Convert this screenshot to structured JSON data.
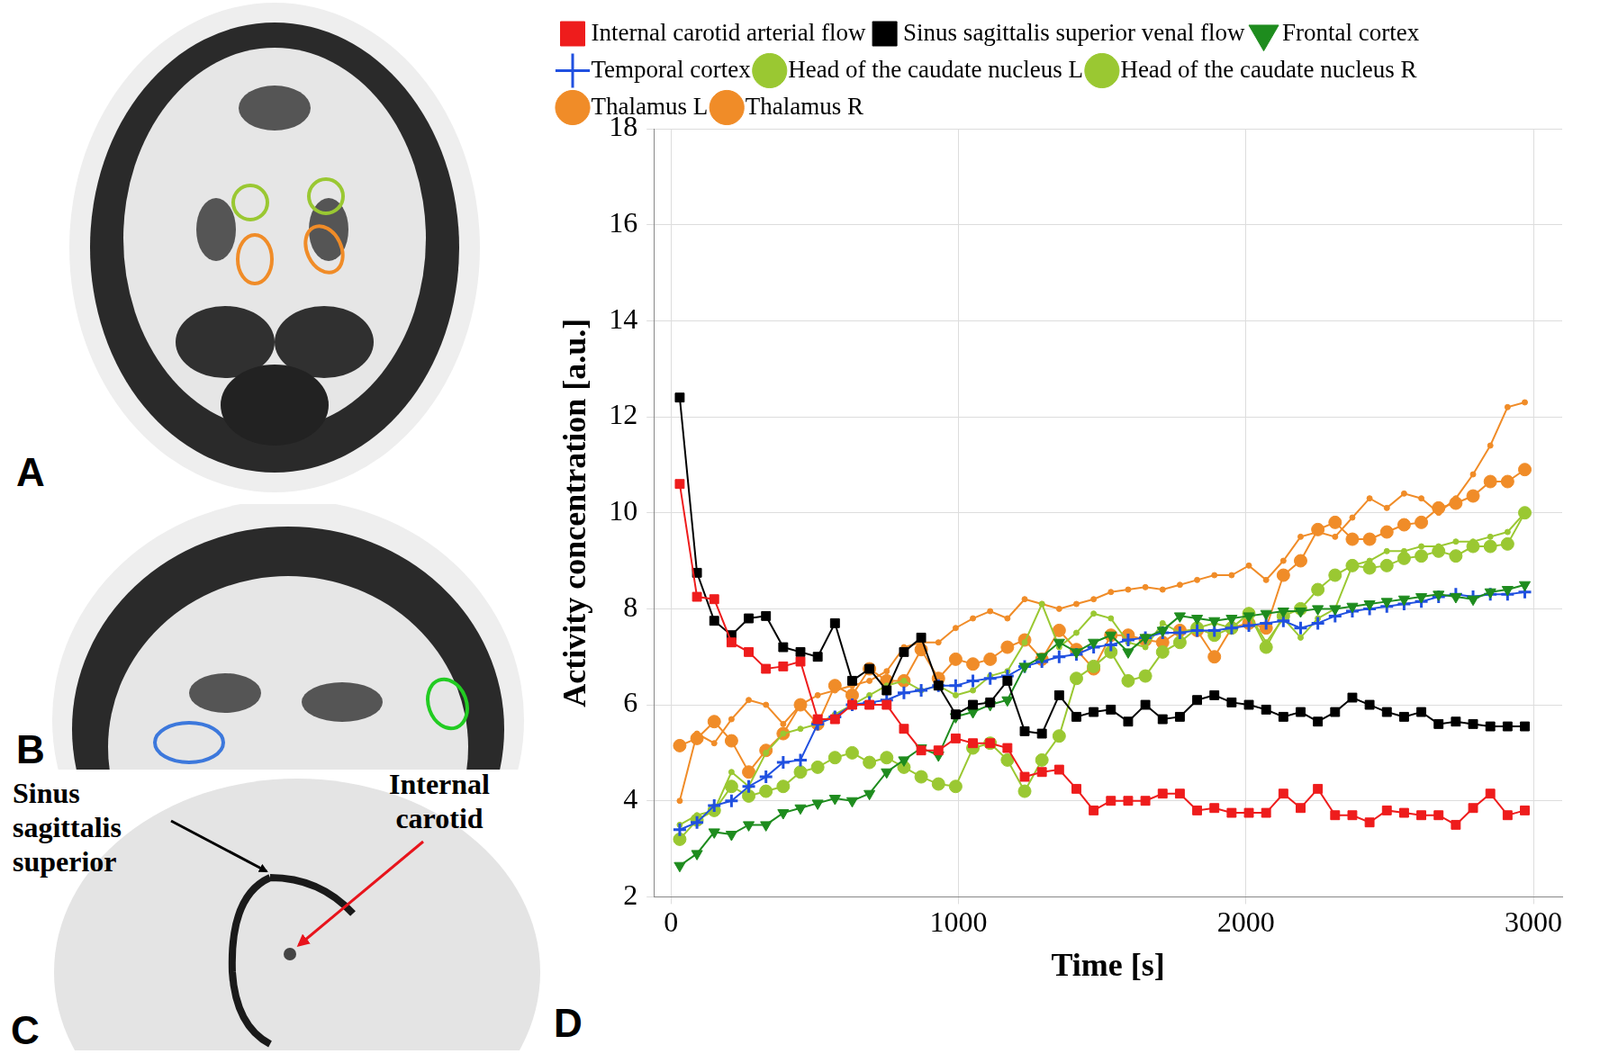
{
  "chart_data": {
    "type": "line",
    "xlabel": "Time [s]",
    "ylabel": "Activity concentration [a.u.]",
    "x": [
      30,
      90,
      150,
      210,
      270,
      330,
      390,
      450,
      510,
      570,
      630,
      690,
      750,
      810,
      870,
      930,
      990,
      1050,
      1110,
      1170,
      1230,
      1290,
      1350,
      1410,
      1470,
      1530,
      1590,
      1650,
      1710,
      1770,
      1830,
      1890,
      1950,
      2010,
      2070,
      2130,
      2190,
      2250,
      2310,
      2370,
      2430,
      2490,
      2550,
      2610,
      2670,
      2730,
      2790,
      2850,
      2910,
      2970
    ],
    "series": [
      {
        "name": "Internal carotid arterial flow",
        "color": "#ee1c1c",
        "marker": "square",
        "values": [
          10.6,
          8.25,
          8.2,
          7.3,
          7.1,
          6.75,
          6.8,
          6.9,
          5.7,
          5.7,
          6.0,
          6.0,
          6.0,
          5.5,
          5.05,
          5.05,
          5.3,
          5.2,
          5.2,
          5.1,
          4.5,
          4.6,
          4.65,
          4.25,
          3.8,
          4.0,
          4.0,
          4.0,
          4.15,
          4.15,
          3.8,
          3.85,
          3.75,
          3.75,
          3.75,
          4.15,
          3.85,
          4.25,
          3.7,
          3.7,
          3.55,
          3.8,
          3.75,
          3.7,
          3.7,
          3.5,
          3.85,
          4.15,
          3.7,
          3.8
        ]
      },
      {
        "name": "Sinus sagittalis superior venal flow",
        "color": "#000000",
        "marker": "square",
        "values": [
          12.4,
          8.75,
          7.75,
          7.45,
          7.8,
          7.85,
          7.2,
          7.1,
          7.0,
          7.7,
          6.5,
          6.75,
          6.3,
          7.1,
          7.4,
          6.4,
          5.8,
          6.0,
          6.05,
          6.5,
          5.45,
          5.4,
          6.2,
          5.75,
          5.85,
          5.9,
          5.65,
          6.0,
          5.7,
          5.75,
          6.1,
          6.2,
          6.05,
          6.0,
          5.9,
          5.75,
          5.85,
          5.65,
          5.85,
          6.15,
          6.0,
          5.85,
          5.75,
          5.85,
          5.6,
          5.65,
          5.6,
          5.55,
          5.55,
          5.55
        ]
      },
      {
        "name": "Frontal cortex",
        "color": "#1e8c1e",
        "marker": "triangle_down",
        "values": [
          2.65,
          2.9,
          3.35,
          3.3,
          3.5,
          3.5,
          3.75,
          3.85,
          3.95,
          4.05,
          4.0,
          4.15,
          4.6,
          4.85,
          5.1,
          4.95,
          5.75,
          5.85,
          6.0,
          6.1,
          6.8,
          7.0,
          7.3,
          7.1,
          7.3,
          7.45,
          7.1,
          7.4,
          7.55,
          7.85,
          7.8,
          7.75,
          7.8,
          7.85,
          7.9,
          7.95,
          7.95,
          8.0,
          8.0,
          8.05,
          8.1,
          8.15,
          8.2,
          8.25,
          8.3,
          8.25,
          8.2,
          8.35,
          8.4,
          8.5
        ]
      },
      {
        "name": "Temporal cortex",
        "color": "#2050e0",
        "marker": "plus",
        "values": [
          3.4,
          3.55,
          3.9,
          4.0,
          4.3,
          4.5,
          4.8,
          4.85,
          5.6,
          5.75,
          6.0,
          6.05,
          6.1,
          6.25,
          6.3,
          6.4,
          6.4,
          6.5,
          6.55,
          6.6,
          6.8,
          6.9,
          7.0,
          7.05,
          7.2,
          7.25,
          7.35,
          7.4,
          7.5,
          7.5,
          7.55,
          7.55,
          7.6,
          7.65,
          7.7,
          7.75,
          7.6,
          7.7,
          7.85,
          7.95,
          8.0,
          8.05,
          8.1,
          8.15,
          8.25,
          8.3,
          8.25,
          8.3,
          8.3,
          8.35
        ]
      },
      {
        "name": "Head of the caudate nucleus L",
        "color": "#9ac832",
        "marker": "small_circle",
        "values": [
          3.5,
          3.7,
          3.8,
          4.6,
          4.3,
          5.0,
          5.4,
          5.5,
          5.6,
          5.8,
          6.0,
          6.2,
          6.4,
          6.5,
          6.3,
          6.4,
          6.2,
          6.3,
          6.6,
          6.7,
          7.3,
          8.1,
          7.2,
          7.5,
          7.9,
          7.8,
          7.3,
          7.2,
          7.7,
          7.5,
          7.6,
          7.7,
          7.6,
          7.9,
          7.3,
          7.8,
          7.4,
          7.8,
          8.0,
          8.9,
          9.0,
          9.2,
          9.2,
          9.3,
          9.3,
          9.4,
          9.4,
          9.5,
          9.6,
          10.0
        ]
      },
      {
        "name": "Head of the caudate nucleus R",
        "color": "#9ac832",
        "marker": "circle",
        "values": [
          3.2,
          3.6,
          3.8,
          4.3,
          4.1,
          4.2,
          4.3,
          4.6,
          4.7,
          4.9,
          5.0,
          4.8,
          4.9,
          4.7,
          4.5,
          4.35,
          4.3,
          5.1,
          5.2,
          4.85,
          4.2,
          4.85,
          5.35,
          6.55,
          6.8,
          7.1,
          6.5,
          6.6,
          7.1,
          7.3,
          7.6,
          7.45,
          7.6,
          7.9,
          7.2,
          7.85,
          8.0,
          8.4,
          8.7,
          8.9,
          8.85,
          8.9,
          9.05,
          9.1,
          9.2,
          9.1,
          9.3,
          9.3,
          9.35,
          10.0
        ]
      },
      {
        "name": "Thalamus L",
        "color": "#f08c28",
        "marker": "small_circle",
        "values": [
          4.0,
          5.4,
          5.2,
          5.7,
          6.1,
          6.0,
          5.6,
          6.0,
          6.2,
          6.3,
          6.4,
          6.5,
          6.7,
          7.2,
          7.3,
          7.3,
          7.6,
          7.8,
          7.95,
          7.8,
          8.2,
          8.1,
          8.0,
          8.1,
          8.2,
          8.35,
          8.4,
          8.45,
          8.4,
          8.5,
          8.6,
          8.7,
          8.7,
          8.9,
          8.6,
          9.0,
          9.5,
          9.6,
          9.5,
          9.9,
          10.3,
          10.1,
          10.4,
          10.3,
          10.0,
          10.3,
          10.8,
          11.4,
          12.2,
          12.3
        ]
      },
      {
        "name": "Thalamus R",
        "color": "#f08c28",
        "marker": "circle",
        "values": [
          5.15,
          5.3,
          5.65,
          5.25,
          4.6,
          5.05,
          5.4,
          6.0,
          5.6,
          6.4,
          6.2,
          6.75,
          6.5,
          6.5,
          7.15,
          6.55,
          6.95,
          6.85,
          6.95,
          7.2,
          7.35,
          6.95,
          7.55,
          7.15,
          6.75,
          7.45,
          7.45,
          7.35,
          7.3,
          7.55,
          7.55,
          7.0,
          7.6,
          7.7,
          7.6,
          8.7,
          9.0,
          9.65,
          9.8,
          9.45,
          9.45,
          9.6,
          9.75,
          9.8,
          10.1,
          10.2,
          10.35,
          10.65,
          10.65,
          10.9
        ]
      }
    ],
    "xlim": [
      -60,
      3100
    ],
    "ylim": [
      2,
      18
    ],
    "xticks": [
      0,
      1000,
      2000,
      3000
    ],
    "yticks": [
      2,
      4,
      6,
      8,
      10,
      12,
      14,
      16,
      18
    ],
    "grid": true,
    "legend": "top"
  },
  "panels": {
    "labels": [
      "A",
      "B",
      "C",
      "D"
    ],
    "annotations": [
      {
        "text": "Sinus sagittalis superior",
        "color": "#000000"
      },
      {
        "text": "Internal carotid",
        "color": "#e8141c"
      }
    ]
  }
}
